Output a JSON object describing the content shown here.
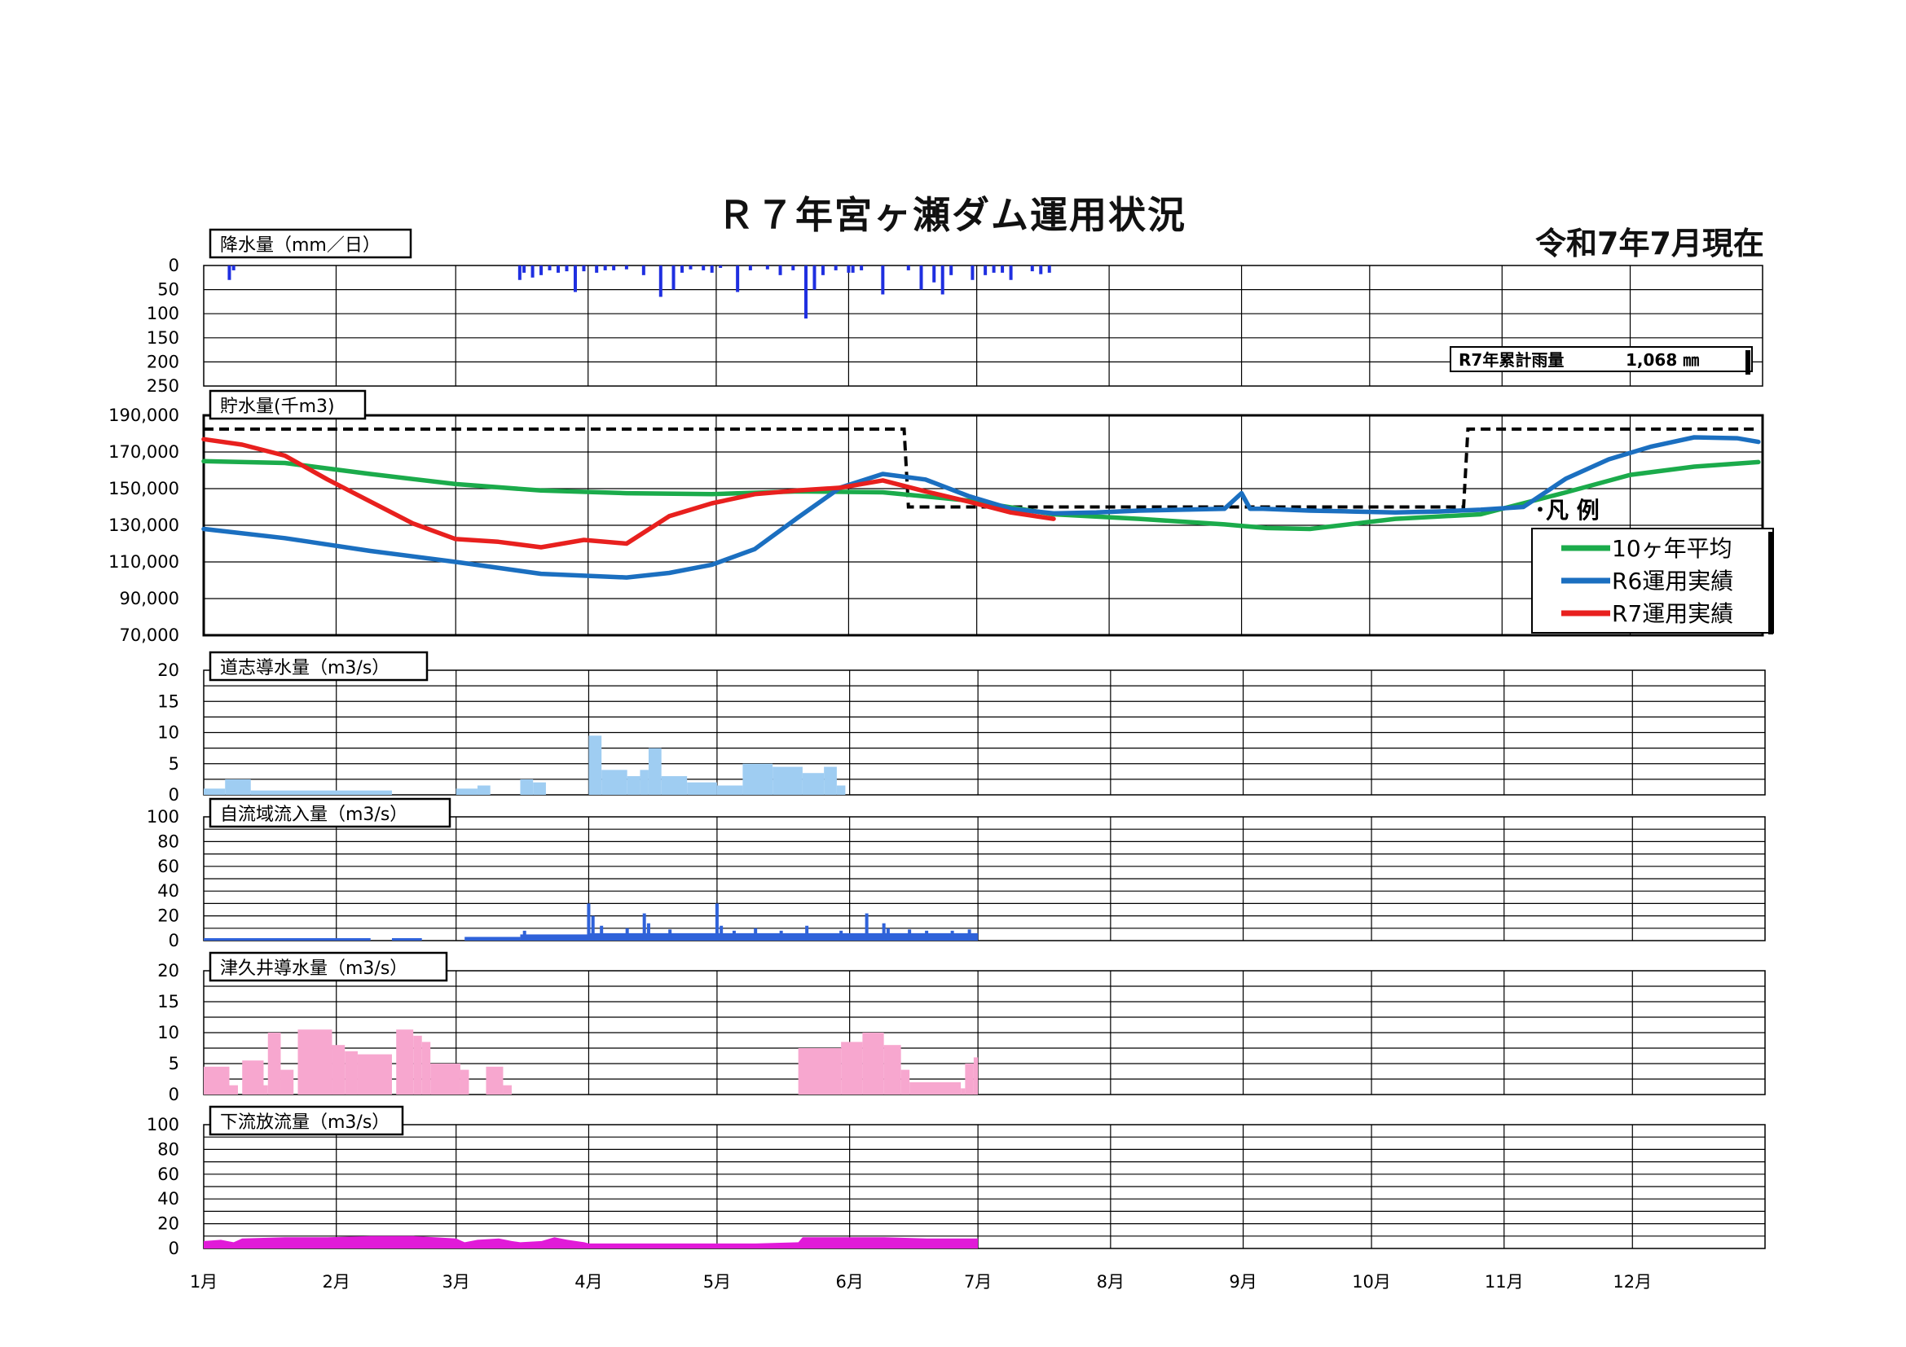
{
  "title": "Ｒ７年宮ヶ瀬ダム運用状況",
  "as_of": "令和7年7月現在",
  "months": [
    "1月",
    "2月",
    "3月",
    "4月",
    "5月",
    "6月",
    "7月",
    "8月",
    "9月",
    "10月",
    "11月",
    "12月"
  ],
  "cumulative_rain": {
    "label": "R7年累計雨量",
    "value": "1,068 ㎜"
  },
  "legend": {
    "title": "･凡 例",
    "items": [
      "10ヶ年平均",
      "R6運用実績",
      "R7運用実績"
    ]
  },
  "colors": {
    "avg10": "#1bab4b",
    "r6": "#1b6fc0",
    "r7": "#e8201e",
    "rain": "#1f2fe0",
    "doshi": "#9fcdf2",
    "inflow": "#2f62d9",
    "tsukui": "#f7a7cf",
    "outflow": "#e11ad8"
  },
  "chart_data": [
    {
      "id": "rain",
      "type": "bar",
      "title": "降水量（mm／日）",
      "unit": "mm/日",
      "ylim": [
        0,
        250
      ],
      "y_inverted": true,
      "yticks": [
        "0",
        "50",
        "100",
        "150",
        "200",
        "250"
      ],
      "x_unit": "day_of_year",
      "x": [
        7,
        8,
        75,
        76,
        78,
        80,
        82,
        84,
        86,
        88,
        90,
        93,
        95,
        97,
        100,
        104,
        108,
        111,
        113,
        115,
        118,
        120,
        122,
        126,
        129,
        133,
        136,
        139,
        142,
        144,
        146,
        149,
        152,
        153,
        155,
        160,
        166,
        169,
        172,
        174,
        176,
        181,
        184,
        186,
        188,
        190,
        195,
        197,
        199
      ],
      "values": [
        30,
        10,
        30,
        15,
        25,
        20,
        10,
        15,
        12,
        55,
        12,
        15,
        10,
        10,
        8,
        20,
        65,
        50,
        15,
        8,
        10,
        15,
        5,
        55,
        10,
        8,
        20,
        10,
        110,
        50,
        20,
        10,
        15,
        15,
        10,
        60,
        10,
        50,
        35,
        60,
        20,
        30,
        20,
        15,
        15,
        30,
        12,
        18,
        15
      ]
    },
    {
      "id": "storage",
      "type": "line",
      "title": "貯水量(千m3)",
      "unit": "千m3",
      "ylim": [
        70000,
        190000
      ],
      "yticks": [
        "70,000",
        "90,000",
        "110,000",
        "130,000",
        "150,000",
        "170,000",
        "190,000"
      ],
      "x_unit": "day_of_year",
      "series": [
        {
          "name": "10ヶ年平均",
          "color": "avg10",
          "x": [
            1,
            20,
            40,
            60,
            80,
            100,
            120,
            140,
            160,
            180,
            200,
            220,
            240,
            250,
            260,
            280,
            300,
            320,
            335,
            350,
            365
          ],
          "y": [
            165000,
            164000,
            158000,
            152500,
            149000,
            147500,
            147000,
            148500,
            148000,
            143500,
            136000,
            133500,
            130500,
            128500,
            128000,
            133500,
            136000,
            148000,
            157500,
            162000,
            164500
          ]
        },
        {
          "name": "R6運用実績",
          "color": "r6",
          "x": [
            1,
            20,
            40,
            60,
            80,
            100,
            110,
            120,
            130,
            140,
            150,
            160,
            170,
            180,
            190,
            200,
            210,
            220,
            240,
            244,
            246,
            249,
            260,
            270,
            280,
            290,
            300,
            310,
            320,
            330,
            340,
            350,
            360,
            365
          ],
          "y": [
            128000,
            123000,
            116000,
            110000,
            103500,
            101500,
            104000,
            108500,
            117000,
            134000,
            150500,
            158000,
            155000,
            146000,
            139000,
            136500,
            137000,
            138000,
            139000,
            147500,
            139000,
            139000,
            138000,
            137500,
            137000,
            137500,
            138500,
            140000,
            155500,
            166000,
            173000,
            178000,
            177500,
            175500
          ]
        },
        {
          "name": "R7運用実績",
          "color": "r7",
          "x": [
            1,
            10,
            20,
            30,
            40,
            50,
            60,
            70,
            80,
            90,
            100,
            110,
            120,
            130,
            140,
            150,
            160,
            170,
            180,
            190,
            200
          ],
          "y": [
            177000,
            174000,
            168000,
            155000,
            143000,
            131000,
            122500,
            121000,
            118000,
            122000,
            120000,
            135000,
            142000,
            147000,
            149000,
            150500,
            154500,
            148500,
            143000,
            137000,
            133500
          ]
        }
      ],
      "upper_limit": {
        "x": [
          1,
          165,
          166,
          296,
          297,
          365
        ],
        "y": [
          182500,
          182500,
          140000,
          140000,
          182500,
          182500
        ]
      }
    },
    {
      "id": "doshi",
      "type": "bar",
      "title": "道志導水量（m3/s）",
      "unit": "m3/s",
      "ylim": [
        0,
        20
      ],
      "yticks": [
        "0",
        "5",
        "10",
        "15",
        "20"
      ],
      "x_unit": "day_of_year",
      "segments": [
        {
          "from": 1,
          "to": 6,
          "value": 1
        },
        {
          "from": 6,
          "to": 12,
          "value": 2.5
        },
        {
          "from": 12,
          "to": 45,
          "value": 0.7
        },
        {
          "from": 60,
          "to": 65,
          "value": 1
        },
        {
          "from": 65,
          "to": 68,
          "value": 1.5
        },
        {
          "from": 75,
          "to": 78,
          "value": 2.5
        },
        {
          "from": 78,
          "to": 81,
          "value": 2
        },
        {
          "from": 91,
          "to": 94,
          "value": 9.5
        },
        {
          "from": 94,
          "to": 100,
          "value": 4
        },
        {
          "from": 100,
          "to": 103,
          "value": 3
        },
        {
          "from": 103,
          "to": 105,
          "value": 4
        },
        {
          "from": 105,
          "to": 108,
          "value": 7.5
        },
        {
          "from": 108,
          "to": 114,
          "value": 3
        },
        {
          "from": 114,
          "to": 121,
          "value": 2
        },
        {
          "from": 121,
          "to": 127,
          "value": 1.5
        },
        {
          "from": 127,
          "to": 134,
          "value": 5
        },
        {
          "from": 134,
          "to": 141,
          "value": 4.5
        },
        {
          "from": 141,
          "to": 146,
          "value": 3.5
        },
        {
          "from": 146,
          "to": 149,
          "value": 4.5
        },
        {
          "from": 149,
          "to": 151,
          "value": 1.5
        }
      ]
    },
    {
      "id": "inflow",
      "type": "bar",
      "title": "自流域流入量（m3/s）",
      "unit": "m3/s",
      "ylim": [
        0,
        100
      ],
      "yticks": [
        "0",
        "20",
        "40",
        "60",
        "80",
        "100"
      ],
      "x_unit": "day_of_year",
      "base": [
        {
          "from": 1,
          "to": 40,
          "value": 2
        },
        {
          "from": 45,
          "to": 52,
          "value": 2
        },
        {
          "from": 62,
          "to": 75,
          "value": 3
        },
        {
          "from": 75,
          "to": 91,
          "value": 5
        },
        {
          "from": 91,
          "to": 182,
          "value": 6
        }
      ],
      "spikes": {
        "x": [
          76,
          91,
          92,
          94,
          100,
          104,
          105,
          110,
          121,
          122,
          125,
          130,
          136,
          142,
          150,
          156,
          160,
          161,
          166,
          170,
          176,
          180
        ],
        "values": [
          8,
          30,
          20,
          12,
          10,
          22,
          14,
          9,
          30,
          12,
          8,
          10,
          8,
          12,
          8,
          22,
          14,
          10,
          9,
          8,
          8,
          9
        ]
      }
    },
    {
      "id": "tsukui",
      "type": "bar",
      "title": "津久井導水量（m3/s）",
      "unit": "m3/s",
      "ylim": [
        0,
        20
      ],
      "yticks": [
        "0",
        "5",
        "10",
        "15",
        "20"
      ],
      "x_unit": "day_of_year",
      "segments": [
        {
          "from": 1,
          "to": 7,
          "value": 4.5
        },
        {
          "from": 7,
          "to": 9,
          "value": 1.5
        },
        {
          "from": 10,
          "to": 15,
          "value": 5.5
        },
        {
          "from": 15,
          "to": 16,
          "value": 1.5
        },
        {
          "from": 16,
          "to": 19,
          "value": 10
        },
        {
          "from": 19,
          "to": 22,
          "value": 4
        },
        {
          "from": 23,
          "to": 31,
          "value": 10.5
        },
        {
          "from": 31,
          "to": 34,
          "value": 8
        },
        {
          "from": 34,
          "to": 37,
          "value": 7
        },
        {
          "from": 37,
          "to": 45,
          "value": 6.5
        },
        {
          "from": 46,
          "to": 50,
          "value": 10.5
        },
        {
          "from": 50,
          "to": 52,
          "value": 9.5
        },
        {
          "from": 52,
          "to": 54,
          "value": 8.5
        },
        {
          "from": 54,
          "to": 61,
          "value": 5
        },
        {
          "from": 61,
          "to": 63,
          "value": 4
        },
        {
          "from": 67,
          "to": 71,
          "value": 4.5
        },
        {
          "from": 71,
          "to": 73,
          "value": 1.5
        },
        {
          "from": 140,
          "to": 150,
          "value": 7.5
        },
        {
          "from": 150,
          "to": 155,
          "value": 8.5
        },
        {
          "from": 155,
          "to": 160,
          "value": 10
        },
        {
          "from": 160,
          "to": 164,
          "value": 8
        },
        {
          "from": 164,
          "to": 166,
          "value": 4
        },
        {
          "from": 166,
          "to": 178,
          "value": 2
        },
        {
          "from": 178,
          "to": 179,
          "value": 1
        },
        {
          "from": 179,
          "to": 181,
          "value": 5
        },
        {
          "from": 181,
          "to": 182,
          "value": 6
        }
      ]
    },
    {
      "id": "outflow",
      "type": "area",
      "title": "下流放流量（m3/s）",
      "unit": "m3/s",
      "ylim": [
        0,
        100
      ],
      "yticks": [
        "0",
        "20",
        "40",
        "60",
        "80",
        "100"
      ],
      "x_unit": "day_of_year",
      "x": [
        1,
        5,
        8,
        10,
        20,
        30,
        40,
        50,
        55,
        60,
        62,
        65,
        70,
        73,
        75,
        80,
        83,
        86,
        90,
        91,
        100,
        120,
        130,
        140,
        141,
        160,
        170,
        182
      ],
      "values": [
        6,
        7,
        5,
        8,
        9,
        9,
        10,
        10,
        9,
        8,
        5,
        7,
        8,
        6,
        5,
        6,
        9,
        7,
        5,
        4,
        4,
        4,
        4,
        5,
        9,
        9,
        8,
        8
      ]
    }
  ]
}
